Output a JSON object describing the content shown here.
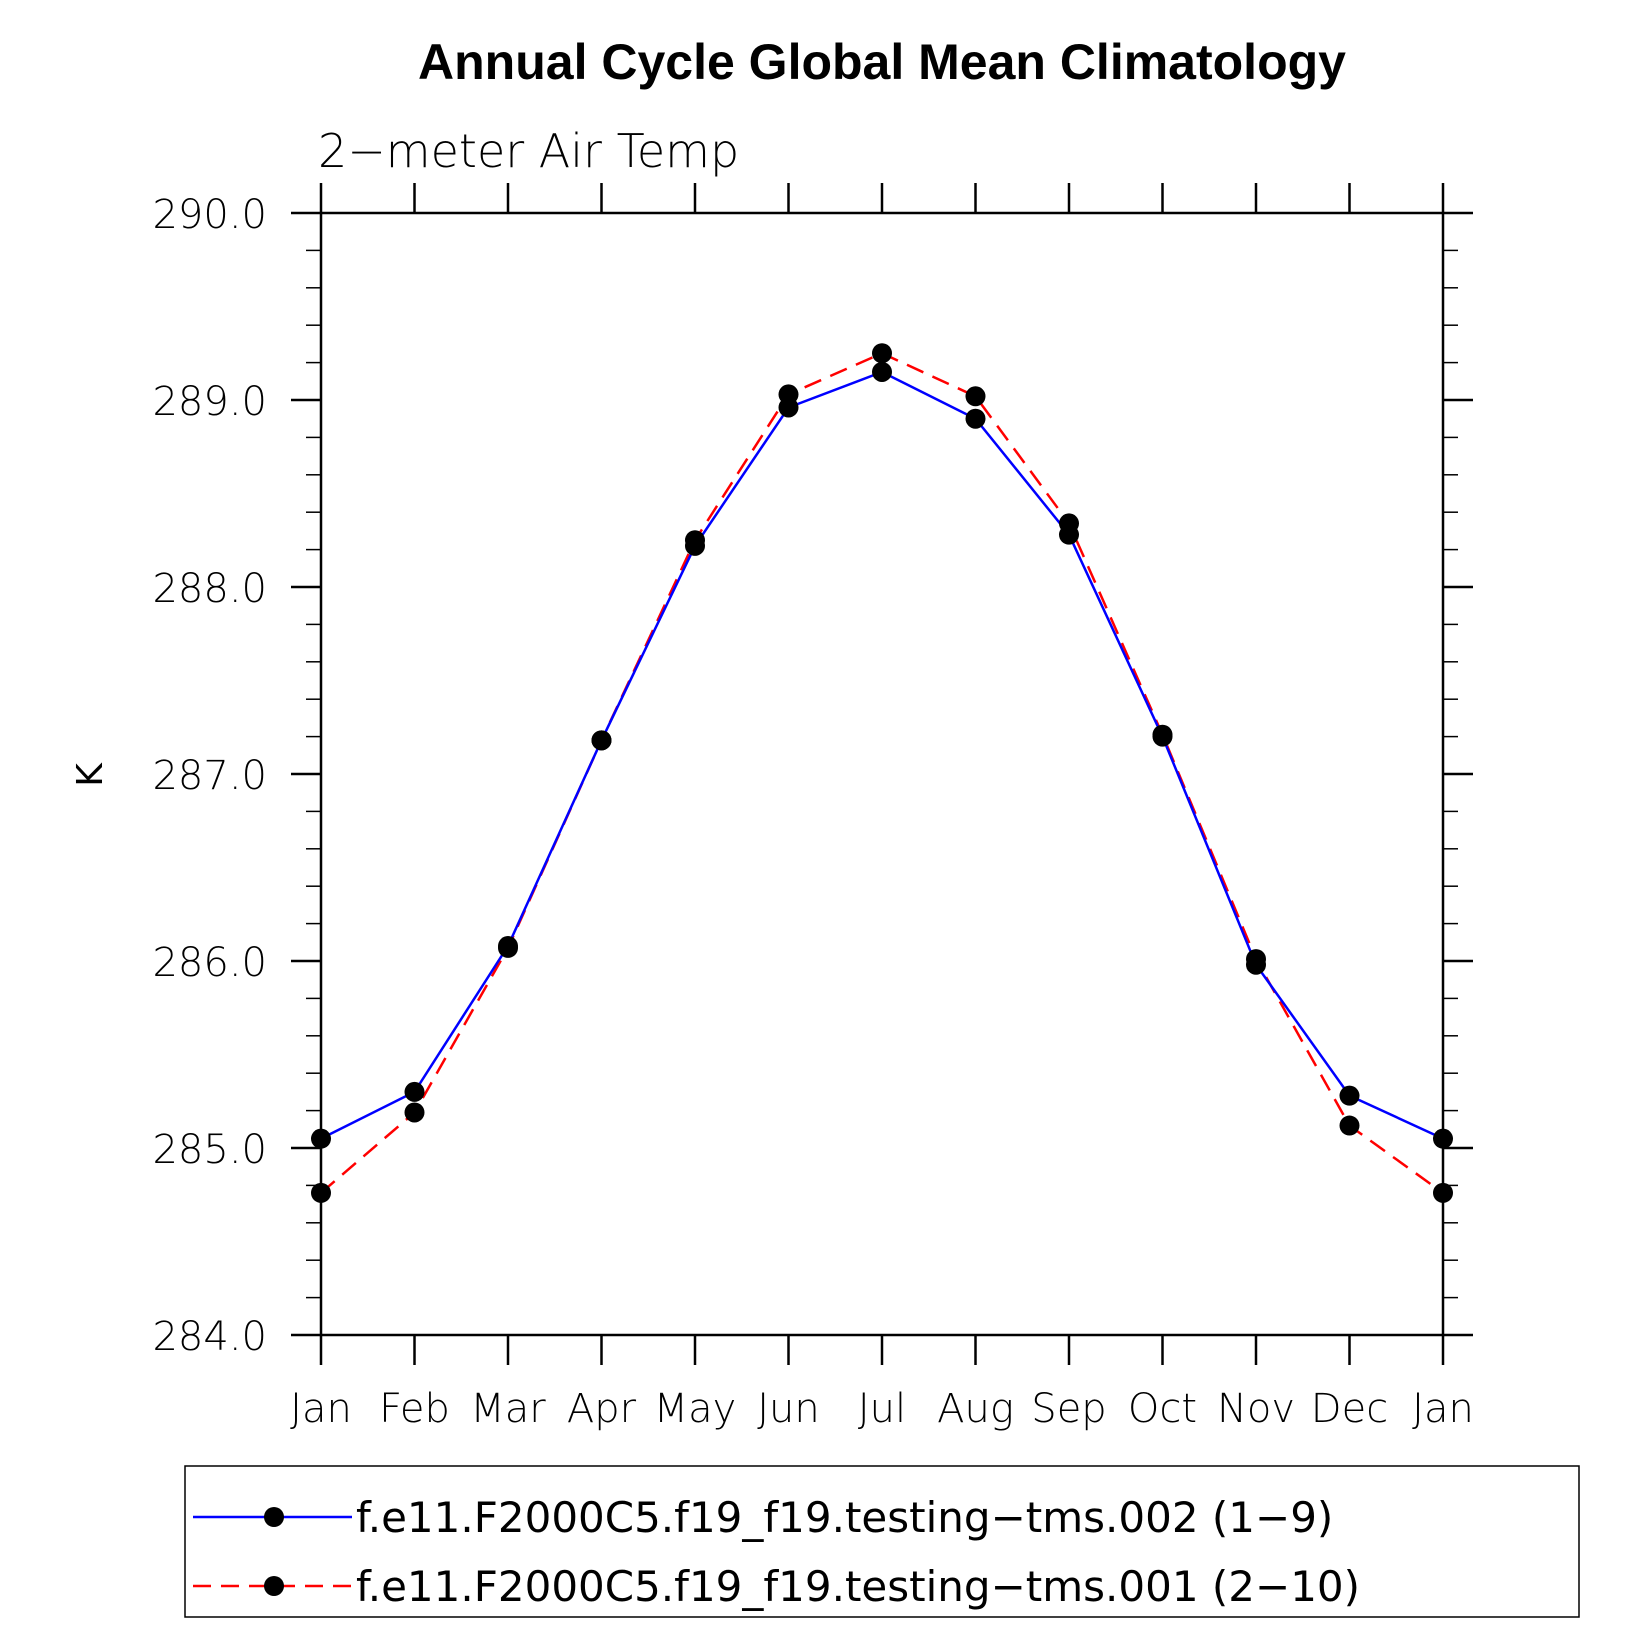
{
  "chart_data": {
    "type": "line",
    "title": "Annual Cycle Global Mean Climatology",
    "subtitle": "2−meter Air Temp",
    "ylabel": "K",
    "xlabel": "",
    "ylim": [
      284.0,
      290.0
    ],
    "y_ticks": [
      "284.0",
      "285.0",
      "286.0",
      "287.0",
      "288.0",
      "289.0",
      "290.0"
    ],
    "categories": [
      "Jan",
      "Feb",
      "Mar",
      "Apr",
      "May",
      "Jun",
      "Jul",
      "Aug",
      "Sep",
      "Oct",
      "Nov",
      "Dec",
      "Jan"
    ],
    "grid": false,
    "legend_position": "bottom",
    "series": [
      {
        "name": "f.e11.F2000C5.f19_f19.testing−tms.002 (1−9)",
        "color": "#0000ff",
        "dash": "solid",
        "marker": "filled-circle",
        "values": [
          285.05,
          285.3,
          286.08,
          287.18,
          288.22,
          288.96,
          289.15,
          288.9,
          288.28,
          287.2,
          285.98,
          285.28,
          285.05
        ]
      },
      {
        "name": "f.e11.F2000C5.f19_f19.testing−tms.001 (2−10)",
        "color": "#ff0000",
        "dash": "dashed",
        "marker": "filled-circle",
        "values": [
          284.76,
          285.19,
          286.07,
          287.18,
          288.25,
          289.03,
          289.25,
          289.02,
          288.34,
          287.21,
          286.01,
          285.12,
          284.76
        ]
      }
    ]
  }
}
